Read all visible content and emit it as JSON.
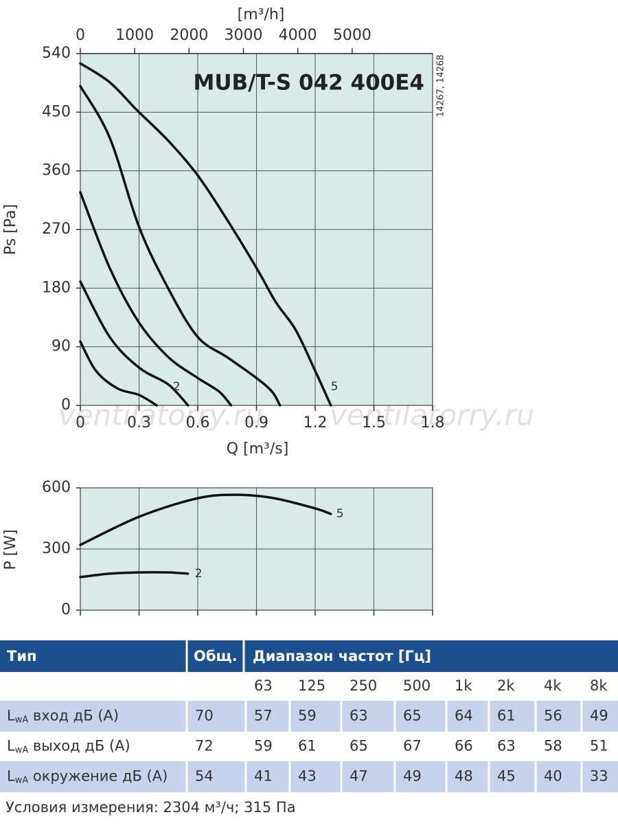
{
  "chart_data": [
    {
      "type": "line",
      "title": "MUB/T-S 042 400E4",
      "xlabel": "Q [m³/s]",
      "ylabel": "Ps [Pa]",
      "x2label": "[m³/h]",
      "side_note": "14267, 14268",
      "xlim": [
        0,
        1.8
      ],
      "xticks": [
        0,
        0.3,
        0.6,
        0.9,
        1.2,
        1.5,
        1.8
      ],
      "x2lim": [
        0,
        6480
      ],
      "x2ticks": [
        0,
        1000,
        2000,
        3000,
        4000,
        5000
      ],
      "ylim": [
        0,
        540
      ],
      "yticks": [
        0,
        90,
        180,
        270,
        360,
        450,
        540
      ],
      "grid": true,
      "background": "#d8ebe9",
      "series": [
        {
          "color": "#111111",
          "x": [
            0,
            0.08,
            0.19,
            0.3,
            0.39
          ],
          "values": [
            98,
            53,
            26,
            16,
            0
          ]
        },
        {
          "name": "2",
          "color": "#111111",
          "x": [
            0,
            0.15,
            0.3,
            0.45,
            0.55
          ],
          "values": [
            190,
            105,
            58,
            32,
            0
          ]
        },
        {
          "color": "#111111",
          "x": [
            0,
            0.15,
            0.3,
            0.45,
            0.6,
            0.71,
            0.77
          ],
          "values": [
            327,
            211,
            127,
            74,
            42,
            21,
            0
          ]
        },
        {
          "color": "#111111",
          "x": [
            0,
            0.15,
            0.3,
            0.45,
            0.6,
            0.75,
            0.9,
            0.98,
            1.02
          ],
          "values": [
            490,
            411,
            274,
            179,
            105,
            74,
            42,
            21,
            0
          ]
        },
        {
          "name": "5",
          "color": "#111111",
          "x": [
            0,
            0.15,
            0.29,
            0.45,
            0.6,
            0.75,
            0.9,
            1.0,
            1.1,
            1.2,
            1.28
          ],
          "values": [
            525,
            496,
            453,
            406,
            353,
            285,
            211,
            158,
            116,
            53,
            0
          ]
        }
      ]
    },
    {
      "type": "line",
      "ylabel": "P [W]",
      "xlim": [
        0,
        1.8
      ],
      "xticks": [
        0,
        0.3,
        0.6,
        0.9,
        1.2,
        1.5,
        1.8
      ],
      "ylim": [
        0,
        600
      ],
      "yticks": [
        0,
        300,
        600
      ],
      "grid": true,
      "background": "#d8ebe9",
      "series": [
        {
          "name": "5",
          "color": "#111111",
          "x": [
            0,
            0.3,
            0.6,
            0.8,
            0.99,
            1.2,
            1.28
          ],
          "values": [
            320,
            458,
            549,
            566,
            549,
            499,
            472
          ]
        },
        {
          "name": "2",
          "color": "#111111",
          "x": [
            0,
            0.15,
            0.3,
            0.45,
            0.55
          ],
          "values": [
            162,
            179,
            185,
            185,
            179
          ]
        }
      ]
    }
  ],
  "watermark": "ventilatorry.ru",
  "table": {
    "header": [
      "Тип",
      "Общ.",
      "Диапазон частот [Гц]"
    ],
    "bands": [
      "63",
      "125",
      "250",
      "500",
      "1k",
      "2k",
      "4k",
      "8k"
    ],
    "rows": [
      {
        "symbol": "L",
        "sub": "wA",
        "text": "вход дБ (A)",
        "total": 70,
        "values": [
          57,
          59,
          63,
          65,
          64,
          61,
          56,
          49
        ]
      },
      {
        "symbol": "L",
        "sub": "wA",
        "text": "выход дБ (A)",
        "total": 72,
        "values": [
          59,
          61,
          65,
          67,
          66,
          63,
          58,
          51
        ]
      },
      {
        "symbol": "L",
        "sub": "wA",
        "text": "окружение дБ (A)",
        "total": 54,
        "values": [
          41,
          43,
          47,
          49,
          48,
          45,
          40,
          33
        ]
      }
    ]
  },
  "note": "Условия измерения: 2304 м³/ч; 315 Па"
}
